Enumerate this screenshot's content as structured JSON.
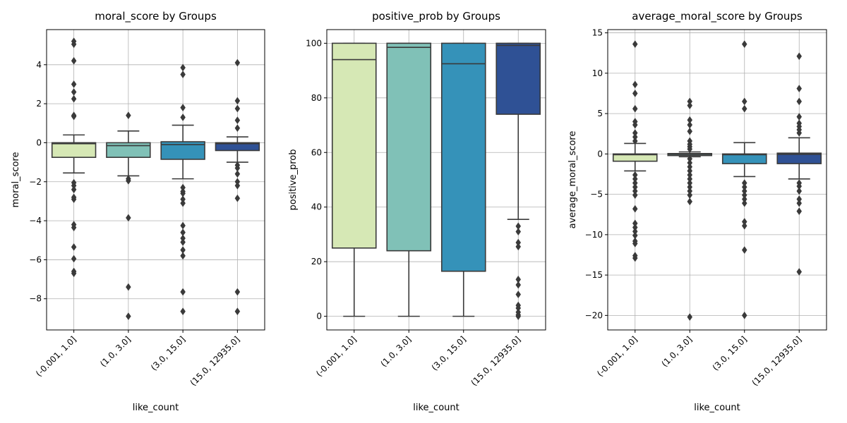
{
  "colors": {
    "groups": [
      "#d6e8b5",
      "#80c1b7",
      "#3592b9",
      "#2f5195"
    ],
    "box_edge": "#3a3a3a",
    "grid": "#b0b0b0"
  },
  "chart_data": [
    {
      "type": "box",
      "title": "moral_score by Groups",
      "xlabel": "like_count",
      "ylabel": "moral_score",
      "categories": [
        "(-0.001, 1.0]",
        "(1.0, 3.0]",
        "(3.0, 15.0]",
        "(15.0, 12935.0]"
      ],
      "ylim": [
        -9.6,
        5.8
      ],
      "yticks": [
        -8,
        -6,
        -4,
        -2,
        0,
        2,
        4
      ],
      "ytick_labels": [
        "−8",
        "−6",
        "−4",
        "−2",
        "0",
        "2",
        "4"
      ],
      "grid": true,
      "boxes": [
        {
          "q1": -0.75,
          "median": -0.05,
          "q3": 0.0,
          "whisker_low": -1.55,
          "whisker_high": 0.4,
          "outliers": [
            5.2,
            5.05,
            4.2,
            3.0,
            2.6,
            2.25,
            1.4,
            1.35,
            -2.05,
            -2.2,
            -2.4,
            -2.8,
            -2.9,
            -4.2,
            -4.35,
            -5.35,
            -5.95,
            -6.6,
            -6.7
          ]
        },
        {
          "q1": -0.75,
          "median": -0.15,
          "q3": 0.0,
          "whisker_low": -1.7,
          "whisker_high": 0.6,
          "outliers": [
            1.4,
            -1.85,
            -1.95,
            -3.85,
            -7.4,
            -8.9
          ]
        },
        {
          "q1": -0.85,
          "median": -0.1,
          "q3": 0.05,
          "whisker_low": -1.85,
          "whisker_high": 0.9,
          "outliers": [
            3.85,
            3.5,
            1.8,
            1.3,
            -2.3,
            -2.5,
            -2.6,
            -2.9,
            -3.1,
            -4.25,
            -4.6,
            -4.9,
            -5.1,
            -5.5,
            -5.8,
            -7.65,
            -8.65
          ]
        },
        {
          "q1": -0.4,
          "median": -0.05,
          "q3": 0.0,
          "whisker_low": -1.0,
          "whisker_high": 0.3,
          "outliers": [
            4.1,
            2.15,
            1.75,
            1.15,
            0.75,
            -1.15,
            -1.3,
            -1.6,
            -2.0,
            -2.2,
            -2.85,
            -7.65,
            -8.65
          ]
        }
      ]
    },
    {
      "type": "box",
      "title": "positive_prob by Groups",
      "xlabel": "like_count",
      "ylabel": "positive_prob",
      "categories": [
        "(-0.001, 1.0]",
        "(1.0, 3.0]",
        "(3.0, 15.0]",
        "(15.0, 12935.0]"
      ],
      "ylim": [
        -5,
        105
      ],
      "yticks": [
        0,
        20,
        40,
        60,
        80,
        100
      ],
      "ytick_labels": [
        "0",
        "20",
        "40",
        "60",
        "80",
        "100"
      ],
      "grid": true,
      "boxes": [
        {
          "q1": 25,
          "median": 94,
          "q3": 100,
          "whisker_low": 0,
          "whisker_high": 100,
          "outliers": []
        },
        {
          "q1": 24,
          "median": 98.5,
          "q3": 100,
          "whisker_low": 0,
          "whisker_high": 100,
          "outliers": []
        },
        {
          "q1": 16.5,
          "median": 92.5,
          "q3": 100,
          "whisker_low": 0,
          "whisker_high": 100,
          "outliers": []
        },
        {
          "q1": 74,
          "median": 99.2,
          "q3": 100,
          "whisker_low": 35.5,
          "whisker_high": 100,
          "outliers": [
            33,
            31,
            27,
            25.5,
            13.5,
            11.5,
            8,
            4,
            3,
            1.5,
            0.5,
            0
          ]
        }
      ]
    },
    {
      "type": "box",
      "title": "average_moral_score by Groups",
      "xlabel": "like_count",
      "ylabel": "average_moral_score",
      "categories": [
        "(-0.001, 1.0]",
        "(1.0, 3.0]",
        "(3.0, 15.0]",
        "(15.0, 12935.0]"
      ],
      "ylim": [
        -21.8,
        15.4
      ],
      "yticks": [
        -20,
        -15,
        -10,
        -5,
        0,
        5,
        10,
        15
      ],
      "ytick_labels": [
        "−20",
        "−15",
        "−10",
        "−5",
        "0",
        "5",
        "10",
        "15"
      ],
      "grid": true,
      "boxes": [
        {
          "q1": -0.9,
          "median": -0.1,
          "q3": 0.0,
          "whisker_low": -2.1,
          "whisker_high": 1.3,
          "outliers": [
            13.6,
            8.6,
            7.5,
            5.6,
            4.0,
            3.6,
            2.6,
            2.1,
            1.6,
            -2.6,
            -3.1,
            -3.6,
            -4.1,
            -4.6,
            -5.1,
            -6.8,
            -8.6,
            -9.1,
            -9.6,
            -10.1,
            -10.8,
            -11.1,
            -12.6,
            -12.9
          ]
        },
        {
          "q1": -0.2,
          "median": -0.05,
          "q3": 0.05,
          "whisker_low": -0.35,
          "whisker_high": 0.25,
          "outliers": [
            6.5,
            6.0,
            4.2,
            3.6,
            2.8,
            1.6,
            1.2,
            0.9,
            0.6,
            -0.6,
            -1.1,
            -1.6,
            -2.1,
            -2.6,
            -3.1,
            -3.6,
            -4.1,
            -4.6,
            -5.1,
            -5.9,
            -20.2
          ]
        },
        {
          "q1": -1.2,
          "median": -0.1,
          "q3": 0.0,
          "whisker_low": -2.8,
          "whisker_high": 1.4,
          "outliers": [
            13.6,
            6.5,
            5.6,
            -3.6,
            -4.1,
            -4.6,
            -5.1,
            -5.6,
            -6.1,
            -8.4,
            -8.9,
            -11.9,
            -20.0
          ]
        },
        {
          "q1": -1.2,
          "median": -0.05,
          "q3": 0.1,
          "whisker_low": -3.1,
          "whisker_high": 2.0,
          "outliers": [
            12.1,
            8.1,
            6.5,
            4.6,
            3.8,
            3.4,
            3.0,
            2.6,
            -3.6,
            -4.0,
            -4.6,
            -5.6,
            -6.1,
            -7.1,
            -14.6
          ]
        }
      ]
    }
  ]
}
